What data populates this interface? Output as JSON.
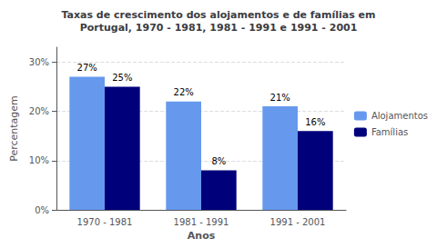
{
  "chart_data": {
    "type": "bar",
    "title": "Taxas de crescimento dos alojamentos e de famílias em\nPortugal, 1970 - 1981, 1981 - 1991 e 1991 - 2001",
    "xlabel": "Anos",
    "ylabel": "Percentagem",
    "categories": [
      "1970 - 1981",
      "1981 - 1991",
      "1991 - 2001"
    ],
    "series": [
      {
        "name": "Alojamentos",
        "color": "#6699EE",
        "values": [
          27,
          22,
          21
        ],
        "value_labels": [
          "27%",
          "22%",
          "21%"
        ]
      },
      {
        "name": "Famílias",
        "color": "#00007B",
        "values": [
          25,
          8,
          16
        ],
        "value_labels": [
          "25%",
          "8%",
          "16%"
        ]
      }
    ],
    "ylim": [
      0,
      33
    ],
    "yticks": [
      {
        "value": 0,
        "label": "0%"
      },
      {
        "value": 10,
        "label": "10%"
      },
      {
        "value": 20,
        "label": "20%"
      },
      {
        "value": 30,
        "label": "30%"
      }
    ],
    "grid": true,
    "legend": "right",
    "data_labels": true
  }
}
